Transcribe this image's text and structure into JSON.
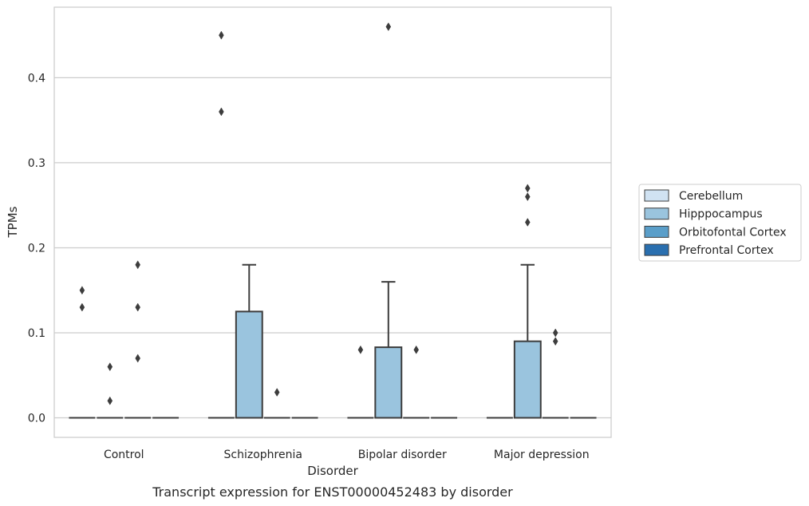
{
  "chart_data": {
    "type": "box",
    "title": "",
    "caption": "Transcript expression for ENST00000452483 by disorder",
    "xlabel": "Disorder",
    "ylabel": "TPMs",
    "ylim": [
      -0.023,
      0.483
    ],
    "yticks": [
      0.0,
      0.1,
      0.2,
      0.3,
      0.4
    ],
    "yticklabels": [
      "0.0",
      "0.1",
      "0.2",
      "0.3",
      "0.4"
    ],
    "grid": "horizontal",
    "categories": [
      "Control",
      "Schizophrenia",
      "Bipolar disorder",
      "Major depression"
    ],
    "legend": {
      "placement": "right"
    },
    "series": [
      {
        "name": "Cerebellum",
        "color": "#d0e2f2",
        "boxes": [
          {
            "q1": 0,
            "median": 0,
            "q3": 0,
            "whisker_low": 0,
            "whisker_high": 0,
            "outliers": [
              0.15,
              0.13
            ]
          },
          {
            "q1": 0,
            "median": 0,
            "q3": 0,
            "whisker_low": 0,
            "whisker_high": 0,
            "outliers": [
              0.45,
              0.36
            ]
          },
          {
            "q1": 0,
            "median": 0,
            "q3": 0,
            "whisker_low": 0,
            "whisker_high": 0,
            "outliers": [
              0.08
            ]
          },
          {
            "q1": 0,
            "median": 0,
            "q3": 0,
            "whisker_low": 0,
            "whisker_high": 0,
            "outliers": []
          }
        ]
      },
      {
        "name": "Hipppocampus",
        "color": "#9ac4de",
        "boxes": [
          {
            "q1": 0,
            "median": 0,
            "q3": 0,
            "whisker_low": 0,
            "whisker_high": 0,
            "outliers": [
              0.06,
              0.02
            ]
          },
          {
            "q1": 0,
            "median": 0,
            "q3": 0.125,
            "whisker_low": 0,
            "whisker_high": 0.18,
            "outliers": []
          },
          {
            "q1": 0,
            "median": 0,
            "q3": 0.083,
            "whisker_low": 0,
            "whisker_high": 0.16,
            "outliers": [
              0.46
            ]
          },
          {
            "q1": 0,
            "median": 0,
            "q3": 0.09,
            "whisker_low": 0,
            "whisker_high": 0.18,
            "outliers": [
              0.27,
              0.26,
              0.23
            ]
          }
        ]
      },
      {
        "name": "Orbitofontal Cortex",
        "color": "#5a9ec9",
        "boxes": [
          {
            "q1": 0,
            "median": 0,
            "q3": 0,
            "whisker_low": 0,
            "whisker_high": 0,
            "outliers": [
              0.18,
              0.13,
              0.07
            ]
          },
          {
            "q1": 0,
            "median": 0,
            "q3": 0,
            "whisker_low": 0,
            "whisker_high": 0,
            "outliers": [
              0.03
            ]
          },
          {
            "q1": 0,
            "median": 0,
            "q3": 0,
            "whisker_low": 0,
            "whisker_high": 0,
            "outliers": [
              0.08
            ]
          },
          {
            "q1": 0,
            "median": 0,
            "q3": 0,
            "whisker_low": 0,
            "whisker_high": 0,
            "outliers": [
              0.1,
              0.09
            ]
          }
        ]
      },
      {
        "name": "Prefrontal Cortex",
        "color": "#2a6faf",
        "boxes": [
          {
            "q1": 0,
            "median": 0,
            "q3": 0,
            "whisker_low": 0,
            "whisker_high": 0,
            "outliers": []
          },
          {
            "q1": 0,
            "median": 0,
            "q3": 0,
            "whisker_low": 0,
            "whisker_high": 0,
            "outliers": []
          },
          {
            "q1": 0,
            "median": 0,
            "q3": 0,
            "whisker_low": 0,
            "whisker_high": 0,
            "outliers": []
          },
          {
            "q1": 0,
            "median": 0,
            "q3": 0,
            "whisker_low": 0,
            "whisker_high": 0,
            "outliers": []
          }
        ]
      }
    ]
  }
}
